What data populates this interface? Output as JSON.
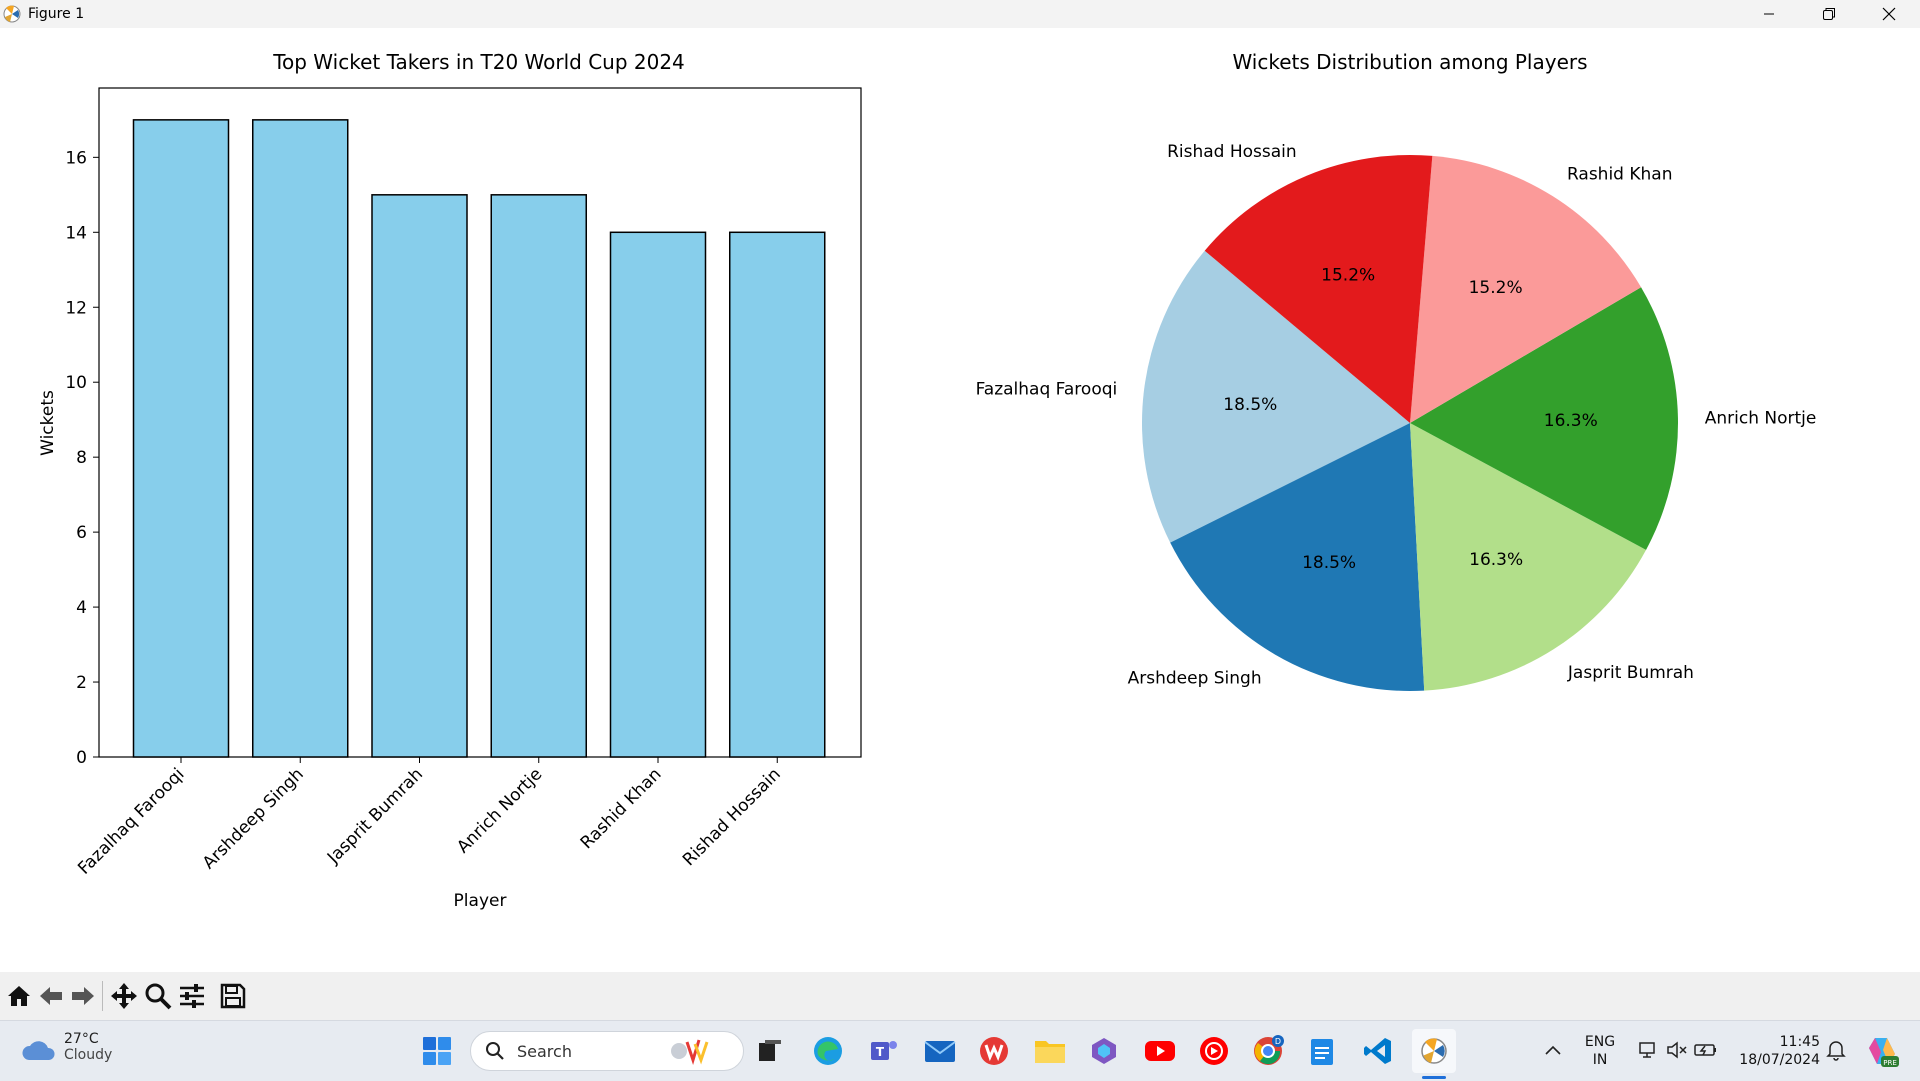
{
  "window": {
    "title": "Figure 1"
  },
  "chart_data": [
    {
      "type": "bar",
      "title": "Top Wicket Takers in T20 World Cup 2024",
      "xlabel": "Player",
      "ylabel": "Wickets",
      "categories": [
        "Fazalhaq Farooqi",
        "Arshdeep Singh",
        "Jasprit Bumrah",
        "Anrich Nortje",
        "Rashid Khan",
        "Rishad Hossain"
      ],
      "values": [
        17,
        17,
        15,
        15,
        14,
        14
      ],
      "ylim": [
        0,
        17.85
      ],
      "yticks": [
        "0",
        "2",
        "4",
        "6",
        "8",
        "10",
        "12",
        "14",
        "16"
      ],
      "bar_color": "#87ceeb",
      "edge_color": "#000000",
      "grid": false
    },
    {
      "type": "pie",
      "title": "Wickets Distribution among Players",
      "labels": [
        "Fazalhaq Farooqi",
        "Arshdeep Singh",
        "Jasprit Bumrah",
        "Anrich Nortje",
        "Rashid Khan",
        "Rishad Hossain"
      ],
      "values": [
        17,
        17,
        15,
        15,
        14,
        14
      ],
      "pct_labels": [
        "18.5%",
        "18.5%",
        "16.3%",
        "16.3%",
        "15.2%",
        "15.2%"
      ],
      "colors": [
        "#a6cee3",
        "#1f78b4",
        "#b2df8a",
        "#33a02c",
        "#fb9a99",
        "#e31a1c"
      ],
      "start_angle_deg": 140
    }
  ],
  "toolbar": {
    "tools": [
      "home-icon",
      "back-arrow-icon",
      "forward-arrow-icon",
      "pan-icon",
      "zoom-icon",
      "configure-subplots-icon",
      "save-icon"
    ]
  },
  "taskbar": {
    "weather": {
      "temp": "27°C",
      "condition": "Cloudy"
    },
    "search": {
      "placeholder": "Search"
    },
    "tray": {
      "lang_line1": "ENG",
      "lang_line2": "IN",
      "time": "11:45",
      "date": "18/07/2024",
      "badge": "D",
      "copilot_badge": "PRE"
    }
  }
}
